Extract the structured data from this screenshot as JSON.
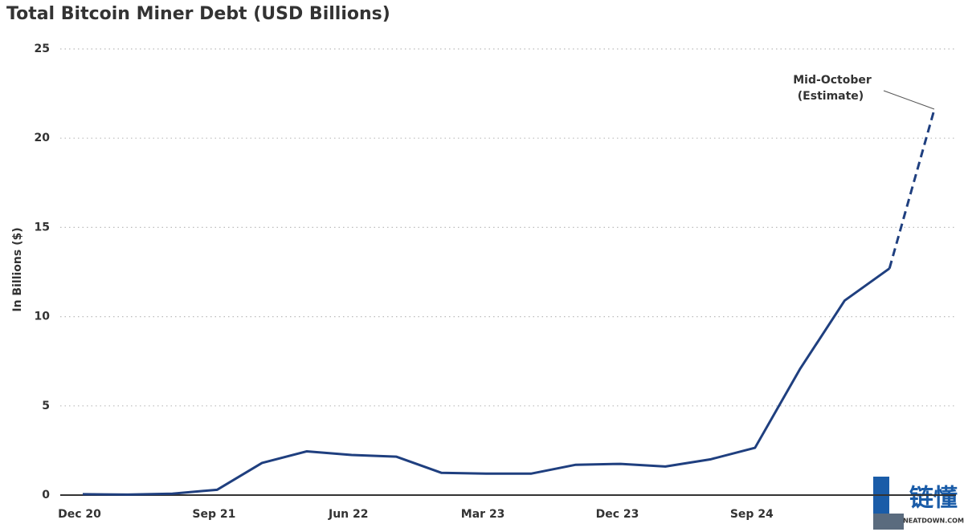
{
  "chart_data": {
    "type": "line",
    "title": "Total Bitcoin Miner Debt (USD Billions)",
    "y_label": "In Billions ($)",
    "annotation": [
      "Mid-October",
      "(Estimate)"
    ],
    "watermark": [
      "链懂",
      "NEATDOWN.COM"
    ],
    "categories": [
      "Dec 20",
      null,
      null,
      "Sep 21",
      null,
      null,
      "Jun 22",
      null,
      null,
      "Mar 23",
      null,
      null,
      "Dec 23",
      null,
      null,
      "Sep 24",
      null,
      null,
      null,
      null
    ],
    "series": [
      {
        "color": "#1f3f7f",
        "values": [
          0.05,
          0.03,
          0.08,
          0.3,
          1.8,
          2.45,
          2.25,
          2.15,
          1.25,
          1.2,
          1.2,
          1.7,
          1.75,
          1.6,
          2.0,
          2.65,
          7.05,
          10.9,
          12.7,
          null
        ]
      },
      {
        "color": "#1f3f7f",
        "dashed": true,
        "values": [
          null,
          null,
          null,
          null,
          null,
          null,
          null,
          null,
          null,
          null,
          null,
          null,
          null,
          null,
          null,
          null,
          null,
          null,
          12.7,
          21.6
        ]
      }
    ],
    "ylim": [
      0,
      25
    ],
    "yticks": [
      0,
      5,
      10,
      15,
      20,
      25
    ],
    "grid": true
  }
}
